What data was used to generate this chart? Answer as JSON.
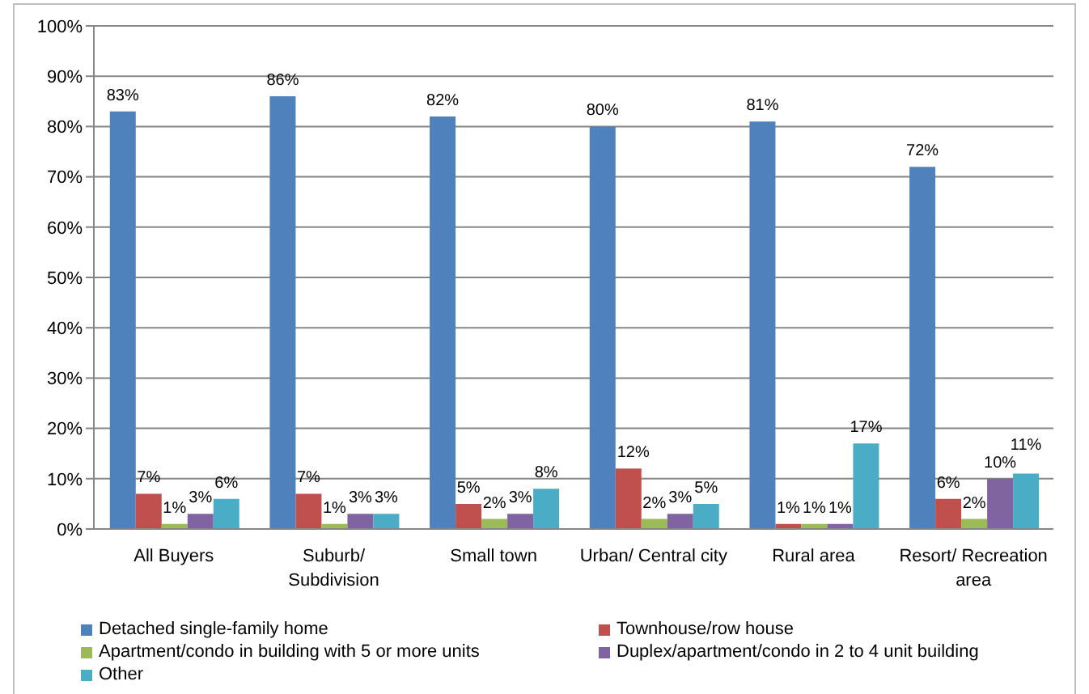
{
  "chart_data": {
    "type": "bar",
    "categories": [
      "All Buyers",
      "Suburb/ Subdivision",
      "Small town",
      "Urban/ Central city",
      "Rural area",
      "Resort/ Recreation area"
    ],
    "series": [
      {
        "name": "Detached single-family home",
        "color": "#4f81bd",
        "values": [
          83,
          86,
          82,
          80,
          81,
          72
        ],
        "value_labels": [
          "83%",
          "86%",
          "82%",
          "80%",
          "81%",
          "72%"
        ]
      },
      {
        "name": "Townhouse/row house",
        "color": "#c0504d",
        "values": [
          7,
          7,
          5,
          12,
          1,
          6
        ],
        "value_labels": [
          "7%",
          "7%",
          "5%",
          "12%",
          "1%",
          "6%"
        ]
      },
      {
        "name": "Apartment/condo in building with 5 or more units",
        "color": "#9bbb59",
        "values": [
          1,
          1,
          2,
          2,
          1,
          2
        ],
        "value_labels": [
          "1%",
          "1%",
          "2%",
          "2%",
          "1%",
          "2%"
        ]
      },
      {
        "name": "Duplex/apartment/condo in 2 to 4 unit building",
        "color": "#8064a2",
        "values": [
          3,
          3,
          3,
          3,
          1,
          10
        ],
        "value_labels": [
          "3%",
          "3%",
          "3%",
          "3%",
          "1%",
          "10%"
        ]
      },
      {
        "name": "Other",
        "color": "#4bacc6",
        "values": [
          6,
          3,
          8,
          5,
          17,
          11
        ],
        "value_labels": [
          "6%",
          "3%",
          "8%",
          "5%",
          "17%",
          "11%"
        ]
      }
    ],
    "ylim": [
      0,
      100
    ],
    "yticks": [
      {
        "value": 0,
        "label": "0%"
      },
      {
        "value": 10,
        "label": "10%"
      },
      {
        "value": 20,
        "label": "20%"
      },
      {
        "value": 30,
        "label": "30%"
      },
      {
        "value": 40,
        "label": "40%"
      },
      {
        "value": 50,
        "label": "50%"
      },
      {
        "value": 60,
        "label": "60%"
      },
      {
        "value": 70,
        "label": "70%"
      },
      {
        "value": 80,
        "label": "80%"
      },
      {
        "value": 90,
        "label": "90%"
      },
      {
        "value": 100,
        "label": "100%"
      }
    ],
    "grid": "y",
    "legend": "bottom"
  }
}
